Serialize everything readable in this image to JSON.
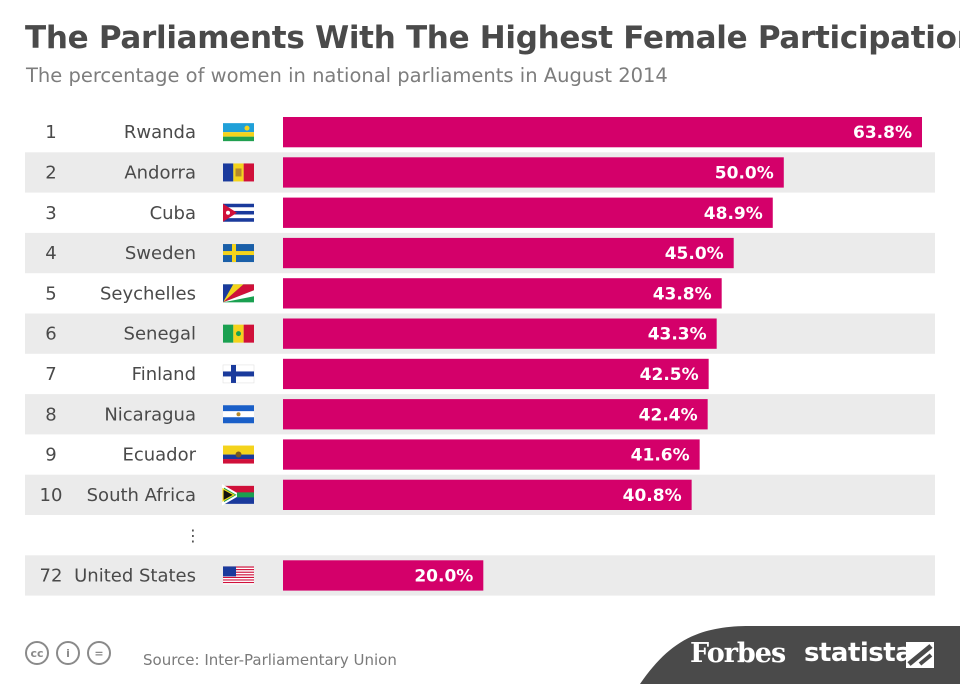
{
  "header": {
    "title": "The Parliaments With The Highest Female Participation",
    "subtitle": "The percentage of women in national parliaments in August 2014"
  },
  "colors": {
    "bar": "#d4006a",
    "stripe": "#ebebeb",
    "text": "#4a4a4a",
    "bar_label": "#ffffff"
  },
  "chart_data": {
    "type": "bar",
    "orientation": "horizontal",
    "title": "The Parliaments With The Highest Female Participation",
    "subtitle": "The percentage of women in national parliaments in August 2014",
    "unit": "%",
    "xlim": [
      0,
      63.8
    ],
    "grid": false,
    "legend": "none",
    "rows": [
      {
        "rank": "1",
        "country": "Rwanda",
        "flag": "rwanda-flag",
        "value": 63.8,
        "label": "63.8%"
      },
      {
        "rank": "2",
        "country": "Andorra",
        "flag": "andorra-flag",
        "value": 50.0,
        "label": "50.0%"
      },
      {
        "rank": "3",
        "country": "Cuba",
        "flag": "cuba-flag",
        "value": 48.9,
        "label": "48.9%"
      },
      {
        "rank": "4",
        "country": "Sweden",
        "flag": "sweden-flag",
        "value": 45.0,
        "label": "45.0%"
      },
      {
        "rank": "5",
        "country": "Seychelles",
        "flag": "seychelles-flag",
        "value": 43.8,
        "label": "43.8%"
      },
      {
        "rank": "6",
        "country": "Senegal",
        "flag": "senegal-flag",
        "value": 43.3,
        "label": "43.3%"
      },
      {
        "rank": "7",
        "country": "Finland",
        "flag": "finland-flag",
        "value": 42.5,
        "label": "42.5%"
      },
      {
        "rank": "8",
        "country": "Nicaragua",
        "flag": "nicaragua-flag",
        "value": 42.4,
        "label": "42.4%"
      },
      {
        "rank": "9",
        "country": "Ecuador",
        "flag": "ecuador-flag",
        "value": 41.6,
        "label": "41.6%"
      },
      {
        "rank": "10",
        "country": "South Africa",
        "flag": "south-africa-flag",
        "value": 40.8,
        "label": "40.8%"
      },
      {
        "ellipsis": true,
        "text": "⋮"
      },
      {
        "rank": "72",
        "country": "United States",
        "flag": "united-states-flag",
        "value": 20.0,
        "label": "20.0%"
      }
    ]
  },
  "footer": {
    "source": "Source: Inter-Parliamentary Union",
    "cc_icons": [
      {
        "name": "creative-commons-icon",
        "glyph": "cc"
      },
      {
        "name": "attribution-icon",
        "glyph": "i"
      },
      {
        "name": "no-derivatives-icon",
        "glyph": "="
      }
    ],
    "brand_forbes": "Forbes",
    "brand_statista": "statista"
  }
}
